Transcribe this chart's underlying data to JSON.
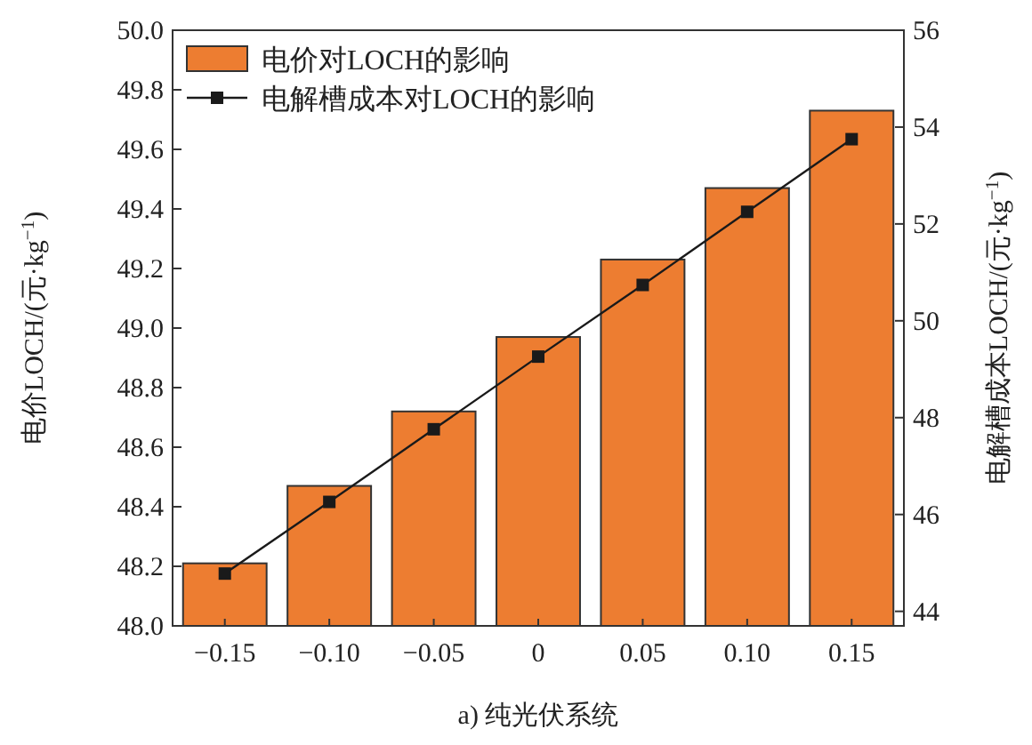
{
  "chart_data": {
    "type": "bar",
    "title": "a) 纯光伏系统",
    "ylabel": "电价LOCH/(元·kg$^{−1}$)",
    "y2label": "电解槽成本LOCH/(元·kg$^{−1}$)",
    "categories": [
      "−0.15",
      "−0.10",
      "−0.05",
      "0",
      "0.05",
      "0.10",
      "0.15"
    ],
    "series": [
      {
        "name": "电价对LOCH的影响",
        "color": "#ed7d31",
        "values": [
          48.21,
          48.47,
          48.72,
          48.97,
          49.23,
          49.47,
          49.73
        ]
      },
      {
        "name": "电解槽成本对LOCH的影响",
        "type": "line",
        "axis": "y2",
        "color": "#1a1a1a",
        "marker": "square",
        "values": [
          44.78,
          46.26,
          47.76,
          49.26,
          50.74,
          52.25,
          53.75
        ]
      }
    ],
    "ylim": [
      48,
      50
    ],
    "yticks": [
      {
        "value": 48,
        "label": "48.0"
      },
      {
        "value": 48.2,
        "label": "48.2"
      },
      {
        "value": 48.4,
        "label": "48.4"
      },
      {
        "value": 48.6,
        "label": "48.6"
      },
      {
        "value": 48.8,
        "label": "48.8"
      },
      {
        "value": 49,
        "label": "49.0"
      },
      {
        "value": 49.2,
        "label": "49.2"
      },
      {
        "value": 49.4,
        "label": "49.4"
      },
      {
        "value": 49.6,
        "label": "49.6"
      },
      {
        "value": 49.8,
        "label": "49.8"
      },
      {
        "value": 50,
        "label": "50.0"
      }
    ],
    "y2lim": [
      43.7,
      56
    ],
    "y2ticks": [
      44,
      46,
      48,
      50,
      52,
      54,
      56
    ],
    "legend": "top left",
    "grid": false
  }
}
